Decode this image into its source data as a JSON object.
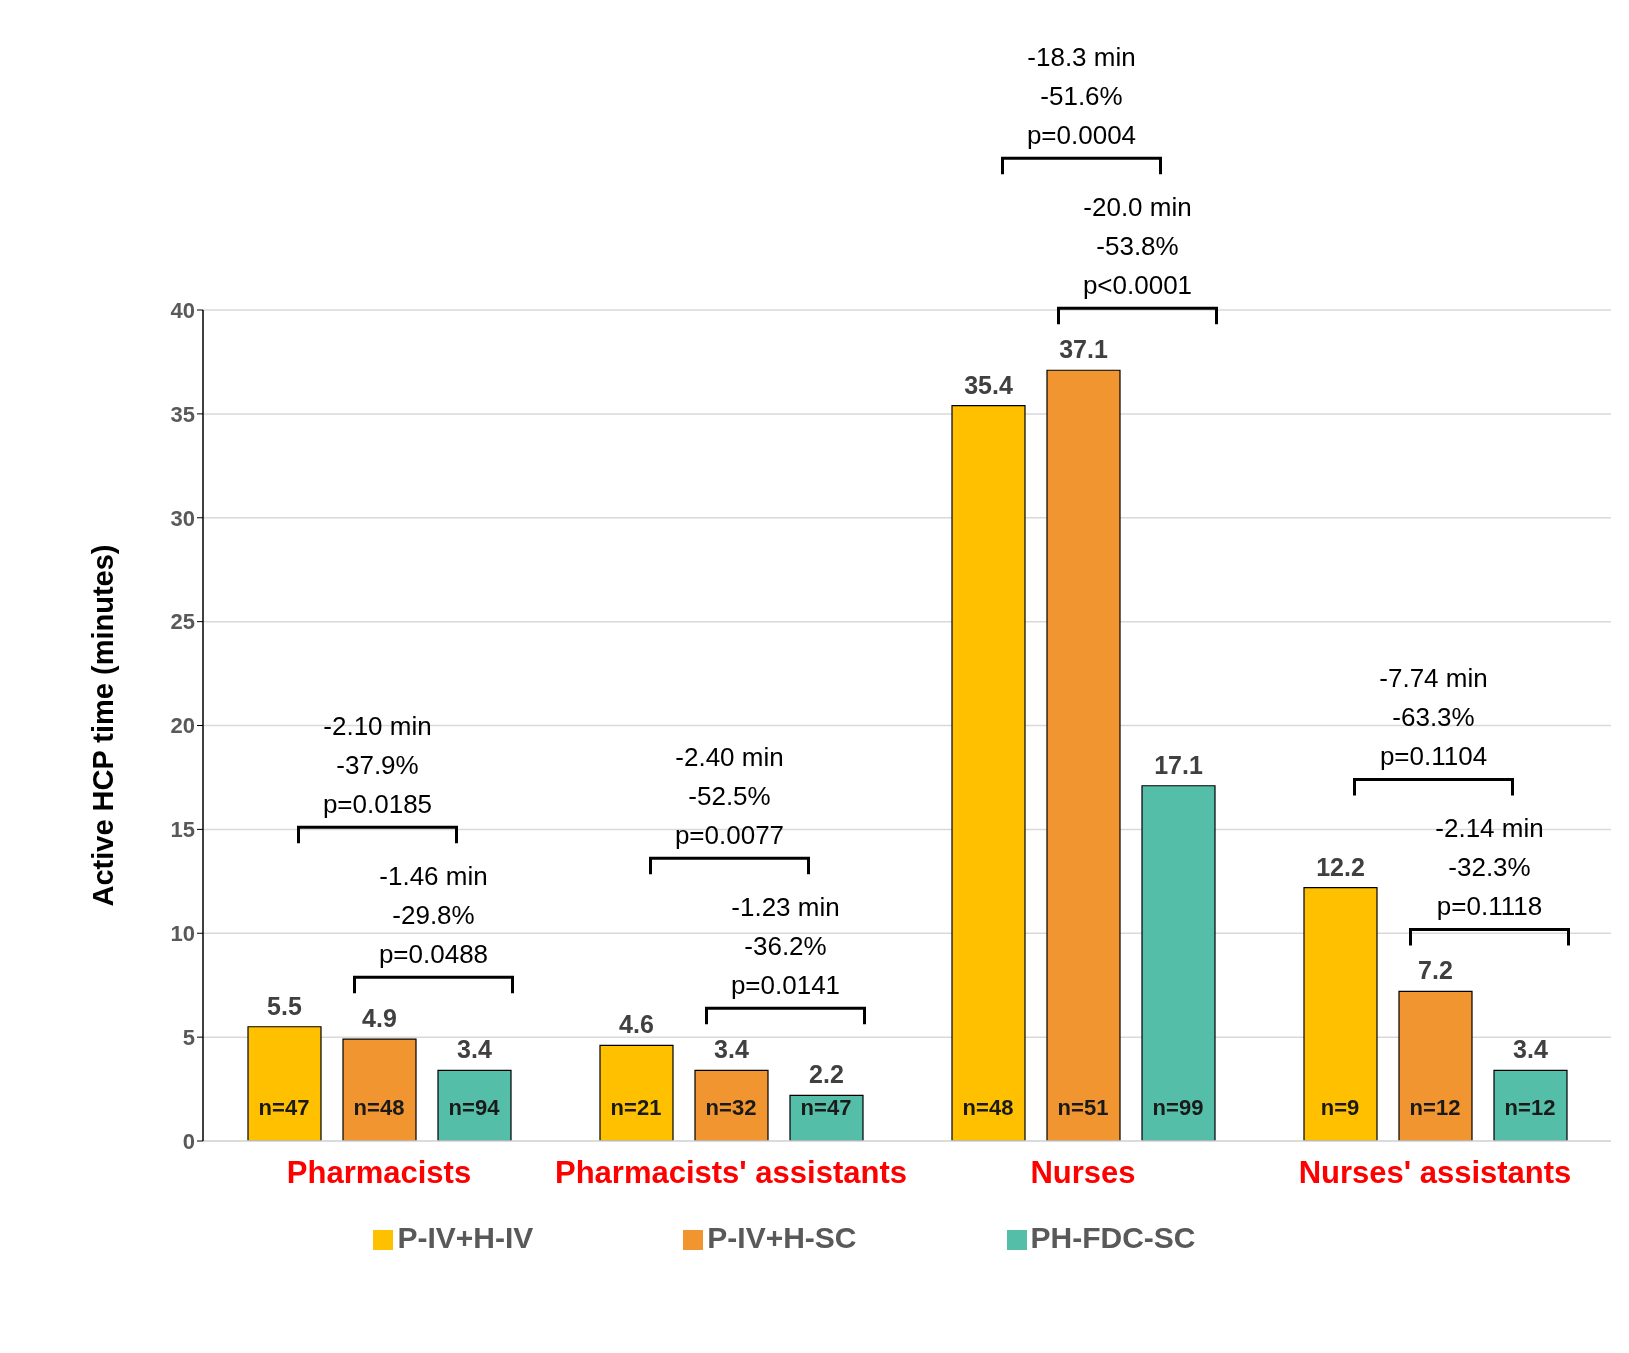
{
  "chart_data": {
    "type": "bar",
    "ylabel": "Active HCP time (minutes)",
    "categories": [
      "Pharmacists",
      "Pharmacists' assistants",
      "Nurses",
      "Nurses' assistants"
    ],
    "series": [
      {
        "name": "P-IV+H-IV",
        "color": "#ffc000",
        "values": [
          5.5,
          4.6,
          35.4,
          12.2
        ]
      },
      {
        "name": "P-IV+H-SC",
        "color": "#f0952f",
        "values": [
          4.9,
          3.4,
          37.1,
          7.2
        ]
      },
      {
        "name": "PH-FDC-SC",
        "color": "#55bea8",
        "values": [
          3.4,
          2.2,
          17.1,
          3.4
        ]
      }
    ],
    "ylim": [
      0,
      40
    ],
    "yticks": [
      0,
      5,
      10,
      15,
      20,
      25,
      30,
      35,
      40
    ],
    "grid": "y",
    "legend": "bottom",
    "data_labels": true,
    "annotations": [
      "n=47",
      "n=48",
      "n=94",
      "n=21",
      "n=32",
      "n=47",
      "n=48",
      "n=51",
      "n=99",
      "n=9",
      "n=12",
      "n=12",
      "-2.10 min\n-37.9%\np=0.0185",
      "-1.46 min\n-29.8%\np=0.0488",
      "-2.40 min\n-52.5%\np=0.0077",
      "-1.23 min\n-36.2%\np=0.0141",
      "-18.3 min\n-51.6%\np=0.0004",
      "-20.0 min\n-53.8%\np<0.0001",
      "-7.74 min\n-63.3%\np=0.1104",
      "-2.14 min\n-32.3%\np=0.1118"
    ]
  }
}
